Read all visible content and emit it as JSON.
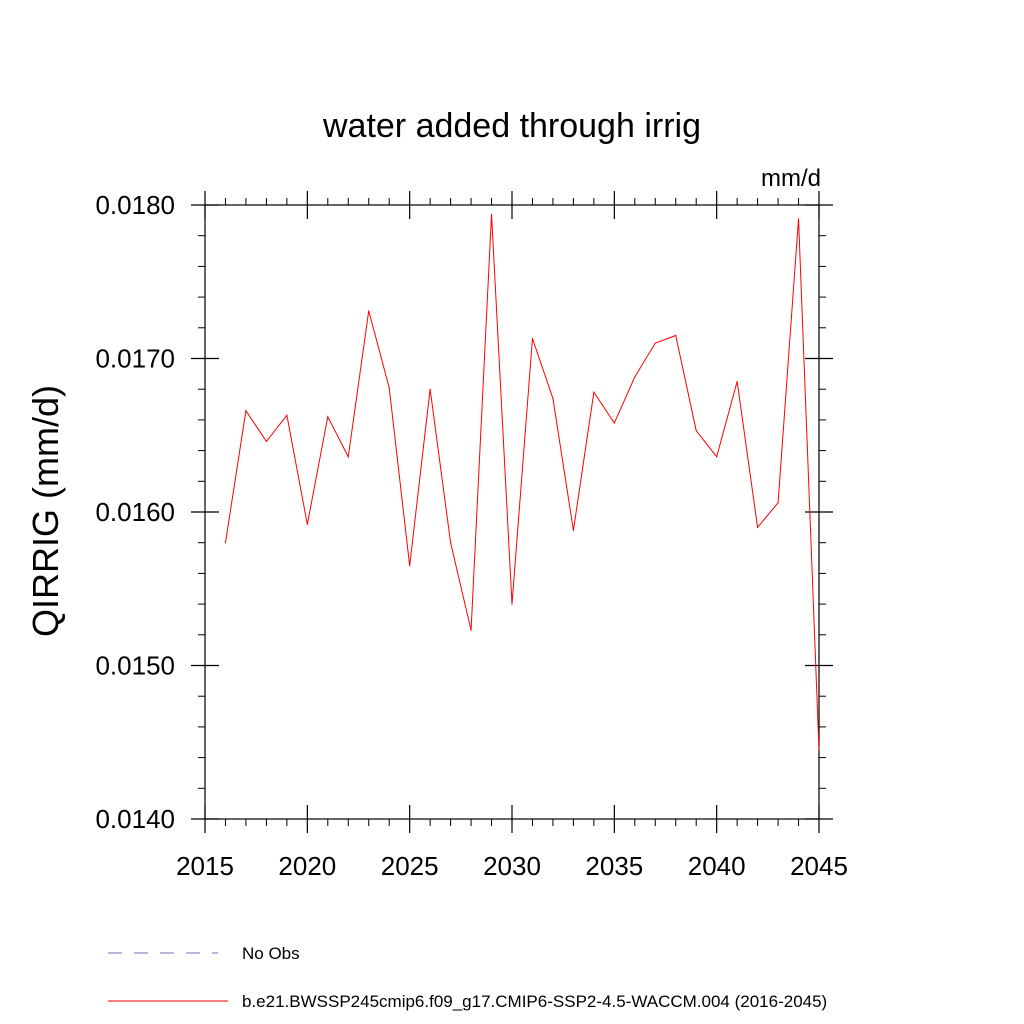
{
  "chart_data": {
    "type": "line",
    "title": "water added through irrig",
    "units_label": "mm/d",
    "ylabel": "QIRRIG  (mm/d)",
    "xlabel": "",
    "xlim": [
      2015,
      2045
    ],
    "ylim": [
      0.014,
      0.018
    ],
    "x_ticks": [
      2015,
      2020,
      2025,
      2030,
      2035,
      2040,
      2045
    ],
    "x_tick_labels": [
      "2015",
      "2020",
      "2025",
      "2030",
      "2035",
      "2040",
      "2045"
    ],
    "y_ticks": [
      0.014,
      0.015,
      0.016,
      0.017,
      0.018
    ],
    "y_tick_labels": [
      "0.0140",
      "0.0150",
      "0.0160",
      "0.0170",
      "0.0180"
    ],
    "grid": false,
    "series": [
      {
        "name": "b.e21.BWSSP245cmip6.f09_g17.CMIP6-SSP2-4.5-WACCM.004 (2016-2045)",
        "color": "#ff0000",
        "dash": "solid",
        "x": [
          2016,
          2017,
          2018,
          2019,
          2020,
          2021,
          2022,
          2023,
          2024,
          2025,
          2026,
          2027,
          2028,
          2029,
          2030,
          2031,
          2032,
          2033,
          2034,
          2035,
          2036,
          2037,
          2038,
          2039,
          2040,
          2041,
          2042,
          2043,
          2044,
          2045
        ],
        "values": [
          0.0158,
          0.01666,
          0.01646,
          0.01663,
          0.01592,
          0.01662,
          0.01636,
          0.01731,
          0.01681,
          0.01565,
          0.0168,
          0.0158,
          0.01523,
          0.01794,
          0.0154,
          0.01713,
          0.01674,
          0.01588,
          0.01678,
          0.01658,
          0.01688,
          0.0171,
          0.01715,
          0.01653,
          0.01636,
          0.01685,
          0.0159,
          0.01606,
          0.01791,
          0.01445
        ]
      }
    ],
    "legend": {
      "placement": "bottom-left",
      "entries": [
        {
          "label": "No Obs",
          "color": "#7a6fb5",
          "dash": "dashed"
        },
        {
          "label": "b.e21.BWSSP245cmip6.f09_g17.CMIP6-SSP2-4.5-WACCM.004 (2016-2045)",
          "color": "#ff0000",
          "dash": "solid"
        }
      ]
    }
  }
}
